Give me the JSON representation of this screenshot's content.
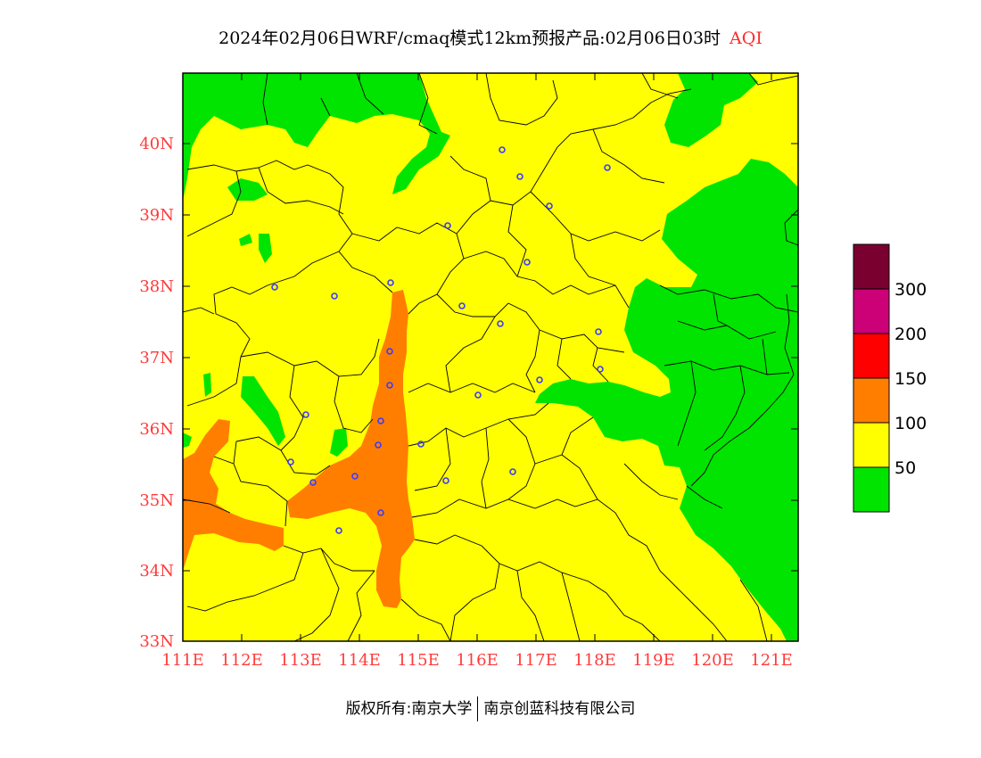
{
  "title": {
    "main": "2024年02月06日WRF/cmaq模式12km预报产品:02月06日03时",
    "product": "AQI"
  },
  "axes": {
    "lat_labels": [
      "40N",
      "39N",
      "38N",
      "37N",
      "36N",
      "35N",
      "34N",
      "33N"
    ],
    "lon_labels": [
      "111E",
      "112E",
      "113E",
      "114E",
      "115E",
      "116E",
      "117E",
      "118E",
      "119E",
      "120E",
      "121E"
    ]
  },
  "legend": {
    "labels": [
      "300",
      "200",
      "150",
      "100",
      "50"
    ],
    "colors": [
      "#7a0030",
      "#cc0077",
      "#ff0000",
      "#ff7e00",
      "#ffff00",
      "#00e400"
    ]
  },
  "copyright": {
    "left": "版权所有:南京大学",
    "right": "南京创蓝科技有限公司"
  },
  "colors": {
    "good": "#00e400",
    "moderate": "#ffff00",
    "unhealthy_sensitive": "#ff7e00",
    "axis_label": "#ff3a3a"
  }
}
